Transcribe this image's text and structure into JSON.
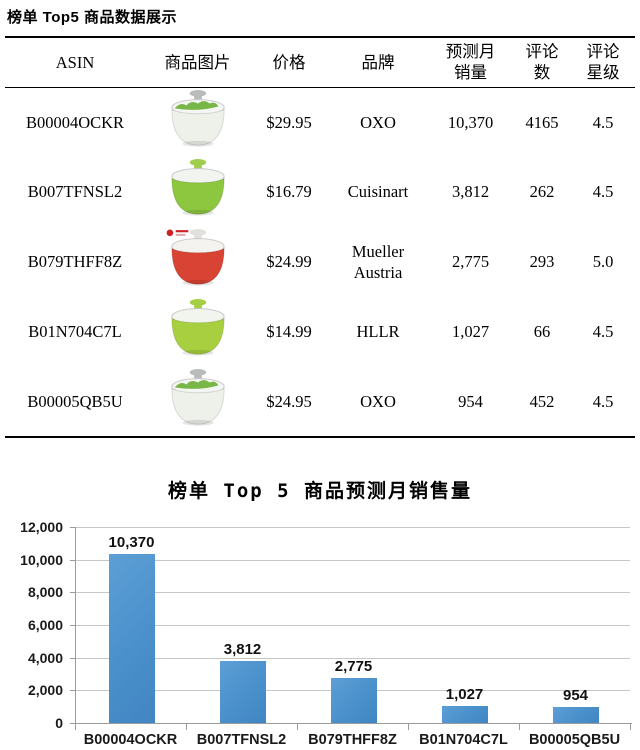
{
  "page_title": "榜单 Top5 商品数据展示",
  "table": {
    "headers": {
      "asin": "ASIN",
      "image": "商品图片",
      "price": "价格",
      "brand": "品牌",
      "sales": "预测月销量",
      "reviews": "评论数",
      "rating": "评论星级"
    },
    "rows": [
      {
        "asin": "B00004OCKR",
        "price": "$29.95",
        "brand": "OXO",
        "sales": "10,370",
        "reviews": "4165",
        "rating": "4.5",
        "image": {
          "name": "oxo-white-salad-spinner",
          "bowl": "#eef0ea",
          "lid": "#f4f6f3",
          "knob": "#b9bcba",
          "greens": true,
          "logo": false
        }
      },
      {
        "asin": "B007TFNSL2",
        "price": "$16.79",
        "brand": "Cuisinart",
        "sales": "3,812",
        "reviews": "262",
        "rating": "4.5",
        "image": {
          "name": "cuisinart-green-salad-spinner",
          "bowl": "#8dc63f",
          "lid": "#f2f4ef",
          "knob": "#9fce4e",
          "greens": false,
          "logo": false
        }
      },
      {
        "asin": "B079THFF8Z",
        "price": "$24.99",
        "brand": "Mueller Austria",
        "sales": "2,775",
        "reviews": "293",
        "rating": "5.0",
        "image": {
          "name": "mueller-red-salad-spinner",
          "bowl": "#d94334",
          "lid": "#f5f3f0",
          "knob": "#e2e0dc",
          "greens": false,
          "logo": true
        }
      },
      {
        "asin": "B01N704C7L",
        "price": "$14.99",
        "brand": "HLLR",
        "sales": "1,027",
        "reviews": "66",
        "rating": "4.5",
        "image": {
          "name": "hllr-lime-salad-spinner",
          "bowl": "#a7cf3f",
          "lid": "#f2f4ee",
          "knob": "#a4cf45",
          "greens": false,
          "logo": false
        }
      },
      {
        "asin": "B00005QB5U",
        "price": "$24.95",
        "brand": "OXO",
        "sales": "954",
        "reviews": "452",
        "rating": "4.5",
        "image": {
          "name": "oxo-white-salad-spinner",
          "bowl": "#eef0ea",
          "lid": "#f4f6f3",
          "knob": "#b9bcba",
          "greens": true,
          "logo": false
        }
      }
    ]
  },
  "chart_data": {
    "type": "bar",
    "title": "榜单 Top 5 商品预测月销售量",
    "categories": [
      "B00004OCKR",
      "B007TFNSL2",
      "B079THFF8Z",
      "B01N704C7L",
      "B00005QB5U"
    ],
    "values": [
      10370,
      3812,
      2775,
      1027,
      954
    ],
    "value_labels": [
      "10,370",
      "3,812",
      "2,775",
      "1,027",
      "954"
    ],
    "xlabel": "",
    "ylabel": "",
    "ylim": [
      0,
      12000
    ],
    "ytick_step": 2000,
    "ytick_labels": [
      "0",
      "2,000",
      "4,000",
      "6,000",
      "8,000",
      "10,000",
      "12,000"
    ],
    "grid": true,
    "legend": "none",
    "bar_color": "#4a90cb"
  }
}
